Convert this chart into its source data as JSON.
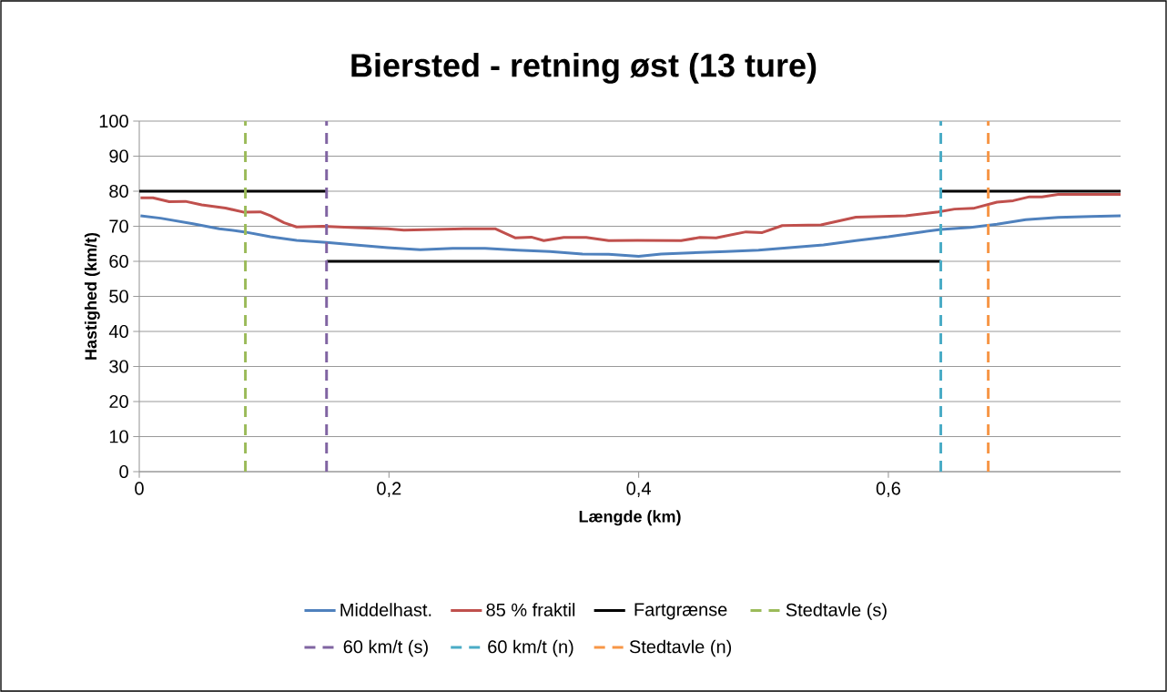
{
  "chart_data": {
    "type": "line",
    "title": "Biersted - retning øst (13 ture)",
    "xlabel": "Længde (km)",
    "ylabel": "Hastighed (km/t)",
    "xlim": [
      0,
      0.786
    ],
    "xticks": [
      0,
      {
        "value": 0.2,
        "label": "0,2"
      },
      {
        "value": 0.4,
        "label": "0,4"
      },
      {
        "value": 0.6,
        "label": "0,6"
      }
    ],
    "ylim": [
      0,
      100
    ],
    "yticks": [
      0,
      10,
      20,
      30,
      40,
      50,
      60,
      70,
      80,
      90,
      100
    ],
    "grid": "y",
    "legend": "bottom",
    "marker": "none",
    "line_style": "solid",
    "series": [
      {
        "name": "Middelhast.",
        "color": "#4f81bd",
        "x": [
          0.001,
          0.017,
          0.043,
          0.064,
          0.084,
          0.105,
          0.126,
          0.15,
          0.173,
          0.199,
          0.225,
          0.251,
          0.277,
          0.303,
          0.329,
          0.355,
          0.376,
          0.4,
          0.418,
          0.47,
          0.496,
          0.548,
          0.574,
          0.6,
          0.627,
          0.642,
          0.666,
          0.687,
          0.71,
          0.736,
          0.762,
          0.786
        ],
        "values": [
          73.0,
          72.3,
          70.7,
          69.3,
          68.4,
          67.0,
          66.0,
          65.4,
          64.7,
          63.9,
          63.3,
          63.7,
          63.7,
          63.2,
          62.8,
          62.1,
          62.0,
          61.4,
          62.1,
          62.8,
          63.2,
          64.7,
          65.9,
          67.0,
          68.4,
          69.1,
          69.7,
          70.6,
          71.9,
          72.5,
          72.8,
          73.0
        ]
      },
      {
        "name": "85 % fraktil",
        "color": "#c0504d",
        "x": [
          0.001,
          0.011,
          0.024,
          0.037,
          0.05,
          0.069,
          0.084,
          0.097,
          0.105,
          0.116,
          0.126,
          0.147,
          0.173,
          0.199,
          0.212,
          0.238,
          0.264,
          0.285,
          0.301,
          0.314,
          0.324,
          0.34,
          0.358,
          0.376,
          0.399,
          0.434,
          0.449,
          0.462,
          0.486,
          0.499,
          0.515,
          0.546,
          0.574,
          0.614,
          0.64,
          0.653,
          0.668,
          0.687,
          0.7,
          0.713,
          0.723,
          0.736,
          0.786
        ],
        "values": [
          78.1,
          78.1,
          77.0,
          77.1,
          76.1,
          75.2,
          74.0,
          74.1,
          73.0,
          71.0,
          69.8,
          70.0,
          69.6,
          69.3,
          68.9,
          69.1,
          69.3,
          69.3,
          66.7,
          66.9,
          65.9,
          66.8,
          66.8,
          65.9,
          66.0,
          65.9,
          66.8,
          66.7,
          68.4,
          68.2,
          70.2,
          70.4,
          72.6,
          73.0,
          74.1,
          74.9,
          75.1,
          76.9,
          77.3,
          78.4,
          78.4,
          79.1,
          79.1
        ]
      },
      {
        "name": "Fartgrænse",
        "color": "#000000",
        "x": [
          0,
          0.15,
          0.15,
          0.642,
          0.642,
          0.786
        ],
        "values": [
          80,
          80,
          60,
          60,
          80,
          80
        ]
      },
      {
        "name": "Stedtavle (s)",
        "color": "#9bbb59",
        "line_style": "dashed",
        "x": [
          0.085,
          0.085
        ],
        "values": [
          0,
          100
        ]
      },
      {
        "name": "60 km/t (s)",
        "color": "#8064a2",
        "line_style": "dashed",
        "x": [
          0.15,
          0.15
        ],
        "values": [
          0,
          100
        ]
      },
      {
        "name": "60 km/t (n)",
        "color": "#4bacc6",
        "line_style": "dashed",
        "x": [
          0.642,
          0.642
        ],
        "values": [
          0,
          100
        ]
      },
      {
        "name": "Stedtavle (n)",
        "color": "#f79646",
        "line_style": "dashed",
        "x": [
          0.68,
          0.68
        ],
        "values": [
          0,
          100
        ]
      }
    ]
  }
}
